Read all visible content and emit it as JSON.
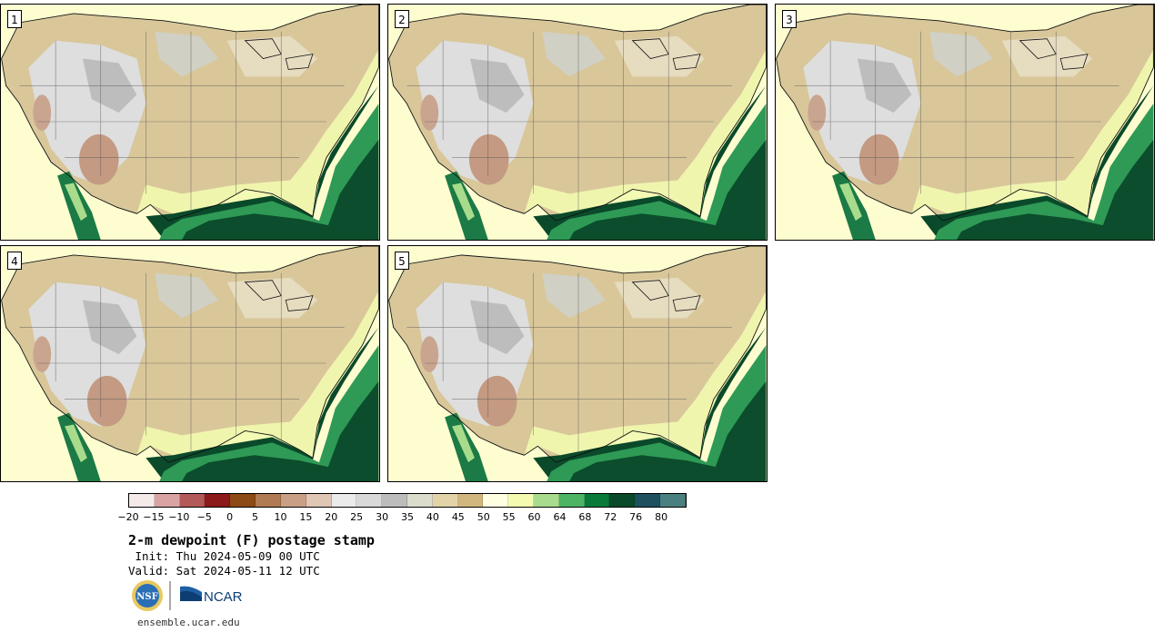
{
  "panels": [
    {
      "label": "1"
    },
    {
      "label": "2"
    },
    {
      "label": "3"
    },
    {
      "label": "4"
    },
    {
      "label": "5"
    }
  ],
  "colorbar": {
    "colors": [
      "#f5eaea",
      "#d9a3a3",
      "#b35959",
      "#8c1a1a",
      "#8c4a14",
      "#b07a52",
      "#c9a086",
      "#e0c6b5",
      "#ebebeb",
      "#d9d9d9",
      "#bcbcbc",
      "#dcdccc",
      "#e2d4a8",
      "#d1b77d",
      "#fefee0",
      "#f4fbb0",
      "#a8dc8c",
      "#4cb464",
      "#0a7a3a",
      "#0a4a2a",
      "#1e5060",
      "#4a8080"
    ],
    "ticks": [
      "−20",
      "−15",
      "−10",
      "−5",
      "0",
      "5",
      "10",
      "15",
      "20",
      "25",
      "30",
      "35",
      "40",
      "45",
      "50",
      "55",
      "60",
      "64",
      "68",
      "72",
      "76",
      "80"
    ]
  },
  "title": "2-m dewpoint (F) postage stamp",
  "init_line": " Init: Thu 2024-05-09 00 UTC",
  "valid_line": "Valid: Sat 2024-05-11 12 UTC",
  "logos": {
    "nsf": "NSF",
    "ncar": "NCAR"
  },
  "site": "ensemble.ucar.edu"
}
